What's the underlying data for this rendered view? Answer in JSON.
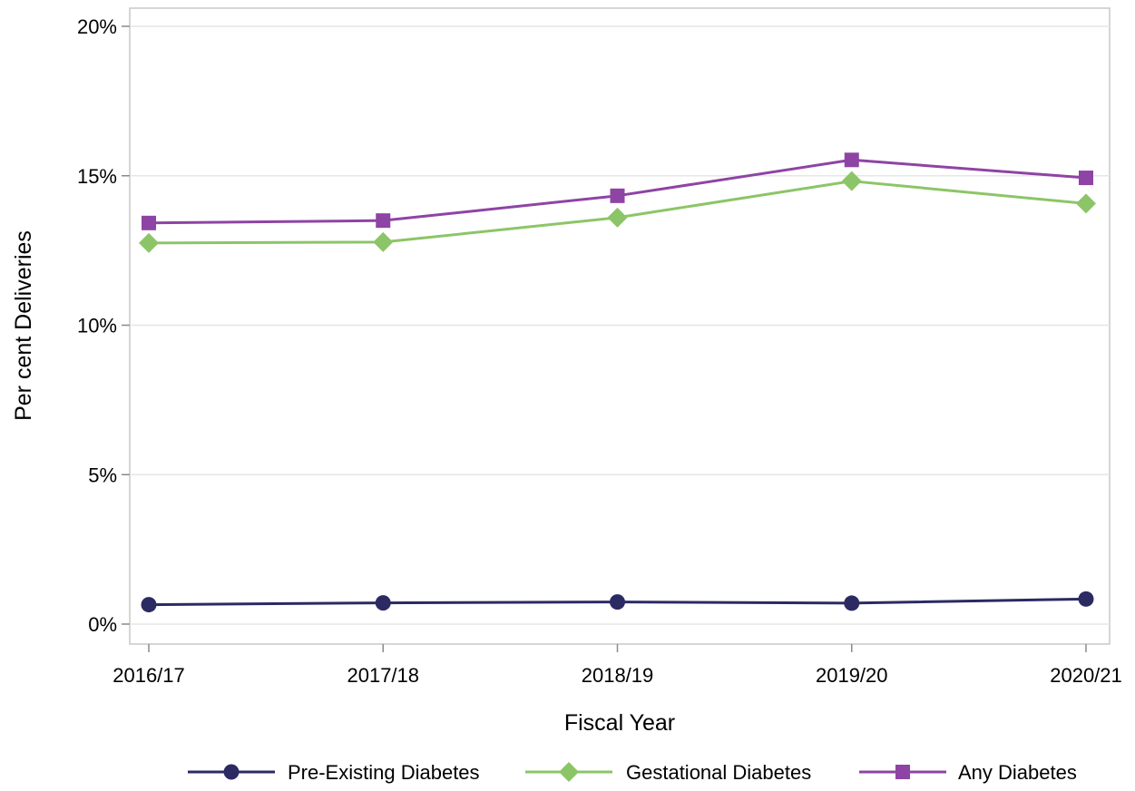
{
  "chart_data": {
    "type": "line",
    "title": "",
    "xlabel": "Fiscal Year",
    "ylabel": "Per cent Deliveries",
    "categories": [
      "2016/17",
      "2017/18",
      "2018/19",
      "2019/20",
      "2020/21"
    ],
    "ylim": [
      0,
      20
    ],
    "yticks": [
      0,
      5,
      10,
      15,
      20
    ],
    "ytick_labels": [
      "0%",
      "5%",
      "10%",
      "15%",
      "20%"
    ],
    "grid": "horizontal",
    "legend_position": "bottom",
    "series": [
      {
        "name": "Pre-Existing Diabetes",
        "marker": "circle",
        "color": "#2b2a63",
        "values": [
          0.65,
          0.71,
          0.74,
          0.7,
          0.84
        ]
      },
      {
        "name": "Gestational Diabetes",
        "marker": "diamond",
        "color": "#8cc567",
        "values": [
          12.75,
          12.78,
          13.6,
          14.82,
          14.07
        ]
      },
      {
        "name": "Any Diabetes",
        "marker": "square",
        "color": "#8e44a4",
        "values": [
          13.42,
          13.5,
          14.33,
          15.53,
          14.93
        ]
      }
    ]
  }
}
